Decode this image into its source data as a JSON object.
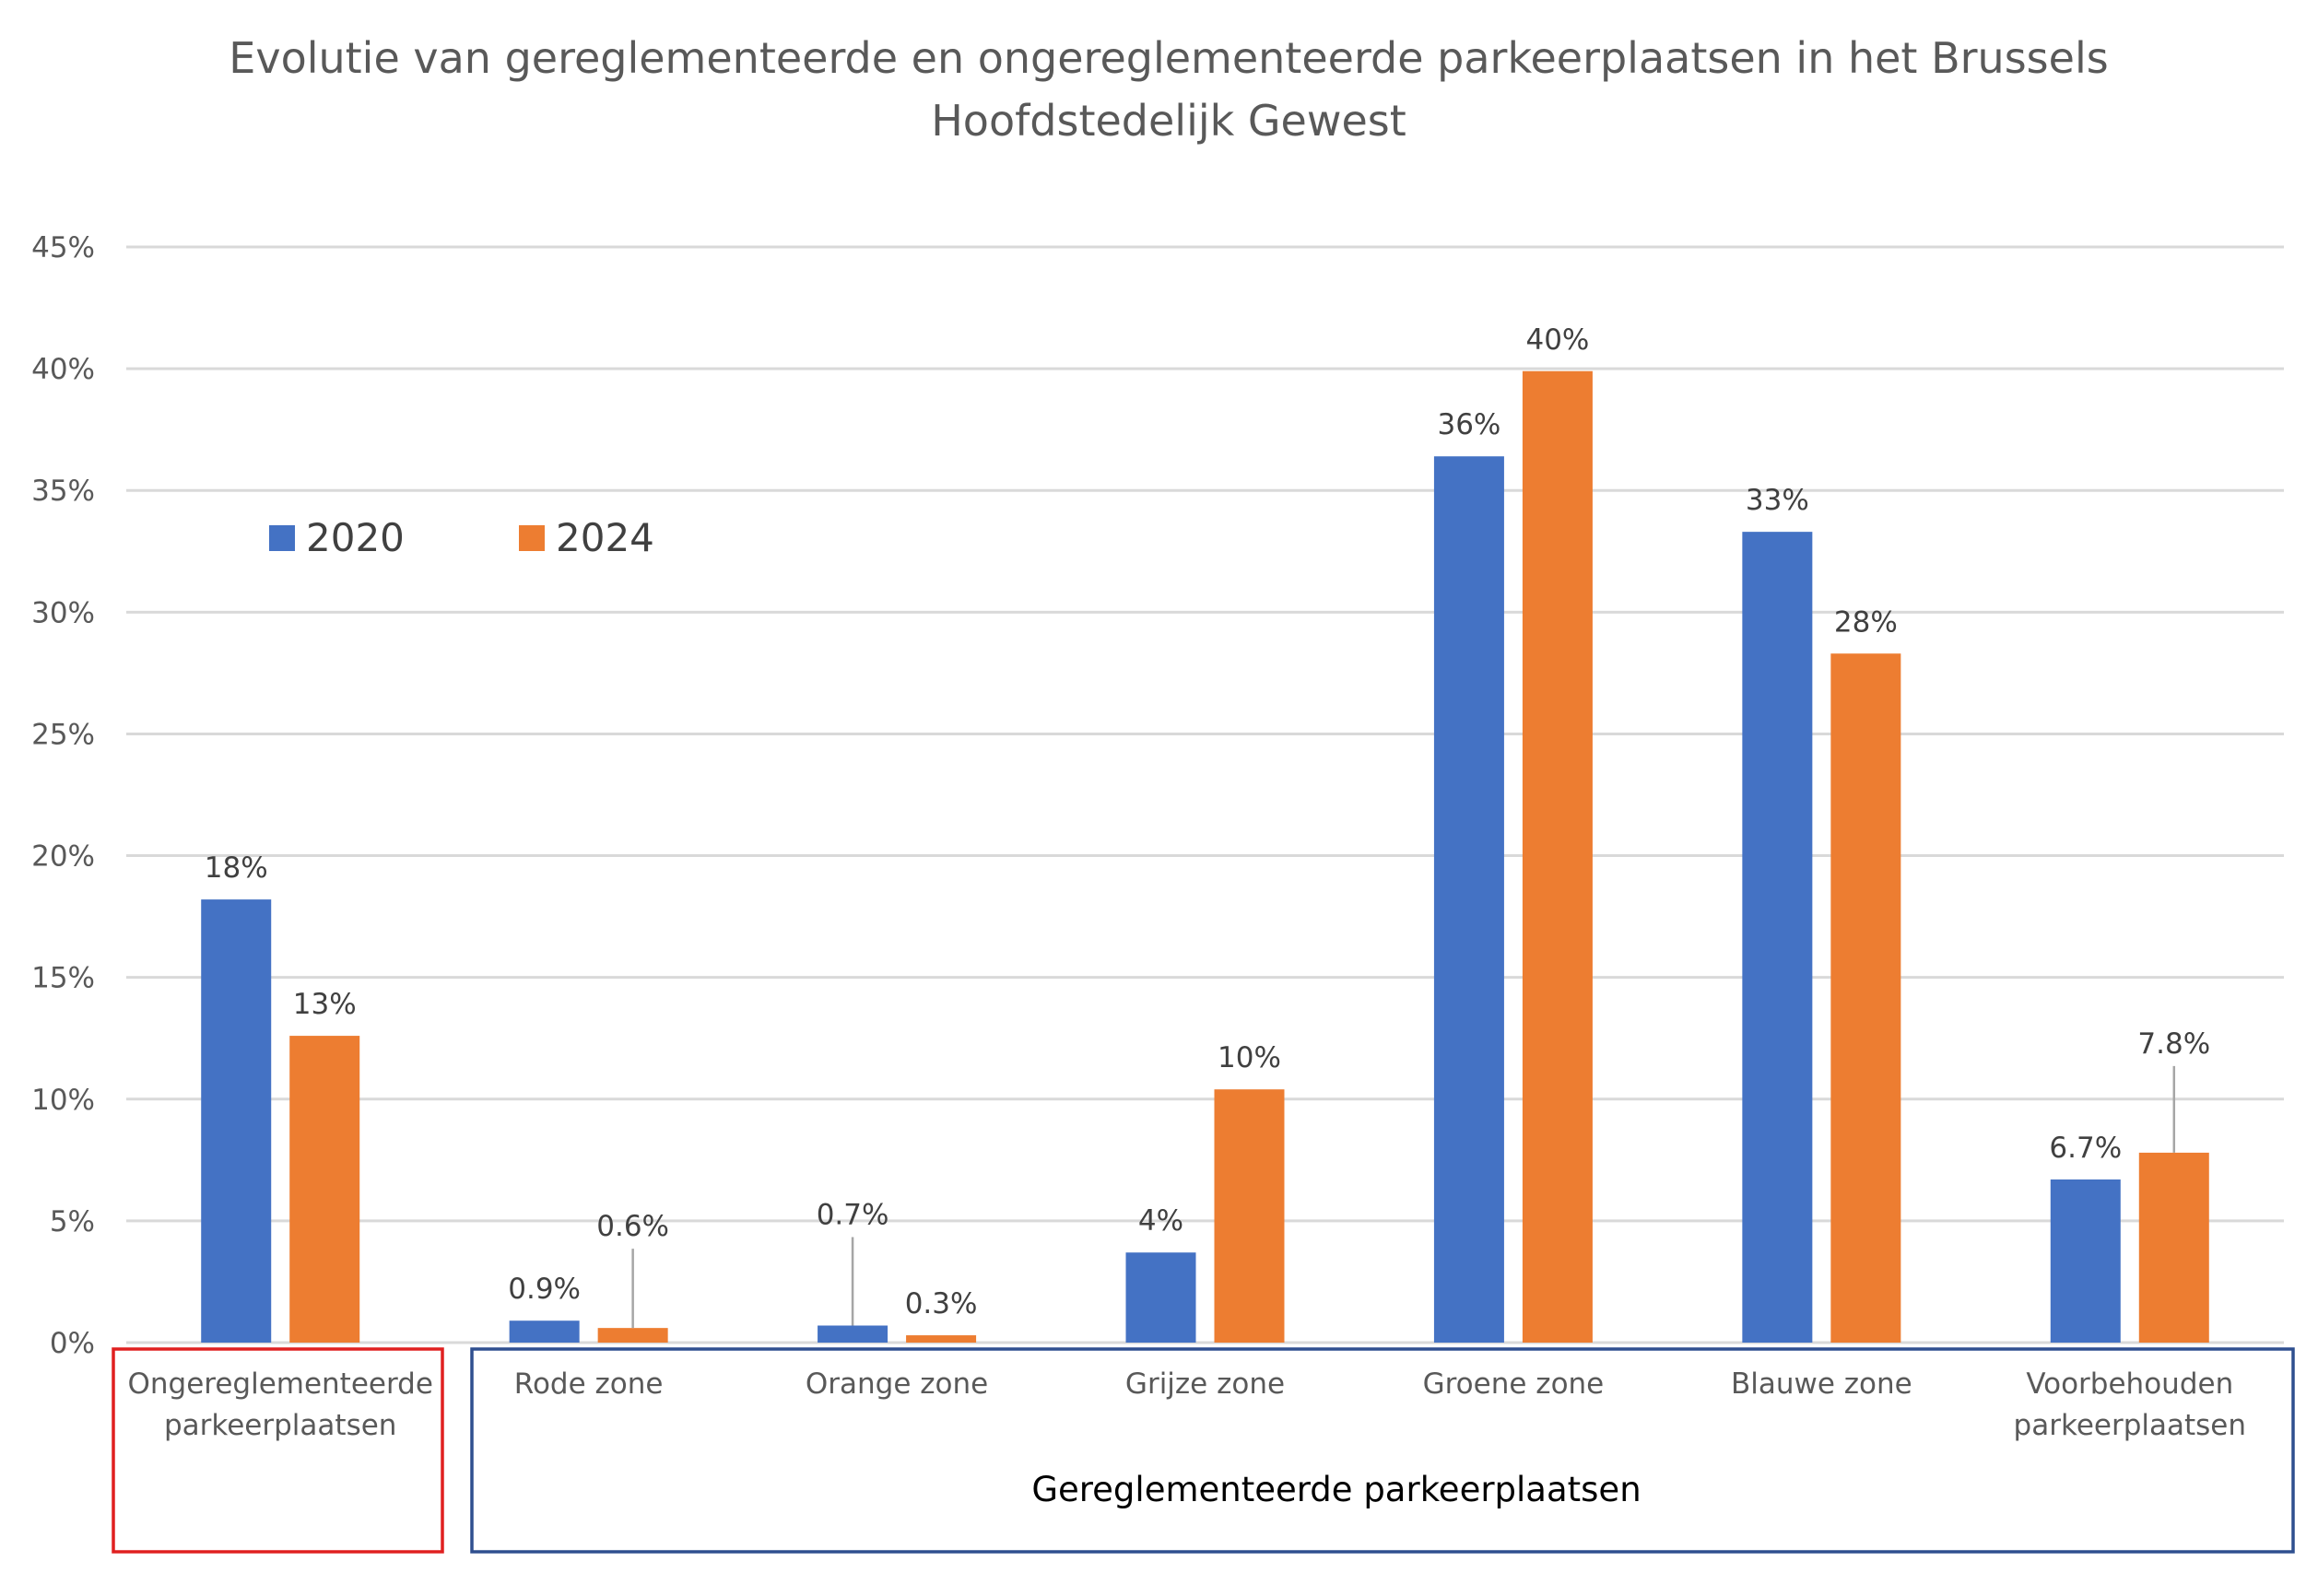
{
  "chart_data": {
    "type": "bar",
    "title_lines": [
      "Evolutie van gereglementeerde en ongereglementeerde parkeerplaatsen in het Brussels",
      "Hoofdstedelijk Gewest"
    ],
    "xlabel": "",
    "ylabel": "",
    "ylim": [
      0,
      45
    ],
    "y_ticks": [
      "0%",
      "5%",
      "10%",
      "15%",
      "20%",
      "25%",
      "30%",
      "35%",
      "40%",
      "45%"
    ],
    "grid": true,
    "legend_position": "top-left",
    "categories": [
      [
        "Ongereglementeerde",
        "parkeerplaatsen"
      ],
      [
        "Rode zone"
      ],
      [
        "Orange zone"
      ],
      [
        "Grijze zone"
      ],
      [
        "Groene zone"
      ],
      [
        "Blauwe zone"
      ],
      [
        "Voorbehouden",
        "parkeerplaatsen"
      ]
    ],
    "series": [
      {
        "name": "2020",
        "color": "#4472c4",
        "values": [
          18.2,
          0.9,
          0.7,
          3.7,
          36.4,
          33.3,
          6.7
        ],
        "labels": [
          "18%",
          "0.9%",
          "0.7%",
          "4%",
          "36%",
          "33%",
          "6.7%"
        ]
      },
      {
        "name": "2024",
        "color": "#ed7d31",
        "values": [
          12.6,
          0.6,
          0.3,
          10.4,
          39.9,
          28.3,
          7.8
        ],
        "labels": [
          "13%",
          "0.6%",
          "0.3%",
          "10%",
          "40%",
          "28%",
          "7.8%"
        ]
      }
    ],
    "groups": [
      {
        "label": "",
        "color": "#e02020"
      },
      {
        "label": "Gereglementeerde parkeerplaatsen",
        "color": "#2f4f8f"
      }
    ]
  }
}
